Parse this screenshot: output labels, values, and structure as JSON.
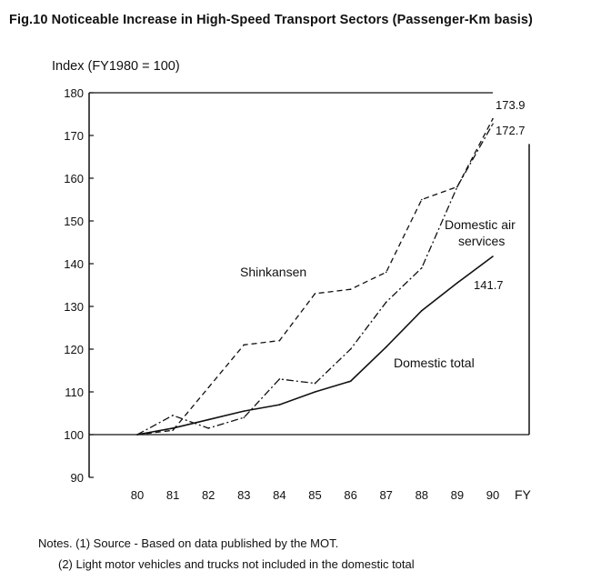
{
  "figure_title": "Fig.10   Noticeable Increase in High-Speed Transport Sectors (Passenger-Km basis)",
  "notes": [
    "Notes. (1) Source - Based on data published by the MOT.",
    "(2) Light motor vehicles and trucks not included in the domestic total"
  ],
  "chart_data": {
    "type": "line",
    "title": "Noticeable Increase in High-Speed Transport Sectors (Passenger-Km basis)",
    "ylabel": "Index (FY1980 = 100)",
    "xlabel": "FY",
    "x": [
      "80",
      "81",
      "82",
      "83",
      "84",
      "85",
      "86",
      "87",
      "88",
      "89",
      "90"
    ],
    "yticks": [
      90,
      100,
      110,
      120,
      130,
      140,
      150,
      160,
      170,
      180
    ],
    "ylim": [
      90,
      180
    ],
    "baseline": 100,
    "grid": false,
    "series": [
      {
        "name": "Shinkansen",
        "style": "dashed",
        "values": [
          100,
          101,
          111,
          121,
          122,
          133,
          134,
          138,
          155,
          158,
          173.9
        ],
        "end_label": "173.9"
      },
      {
        "name": "Domestic air services",
        "style": "dash-dot",
        "values": [
          100,
          104.5,
          101.5,
          104,
          113,
          112,
          120,
          131,
          139,
          158,
          172.7
        ],
        "end_label": "172.7"
      },
      {
        "name": "Domestic total",
        "style": "solid",
        "values": [
          100,
          101.5,
          103.5,
          105.5,
          107,
          110,
          112.5,
          120.5,
          129,
          135.5,
          141.7
        ],
        "end_label": "141.7"
      }
    ],
    "annotations": {
      "shinkansen": "Shinkansen",
      "air_line1": "Domestic air",
      "air_line2": "services",
      "total": "Domestic total"
    }
  }
}
